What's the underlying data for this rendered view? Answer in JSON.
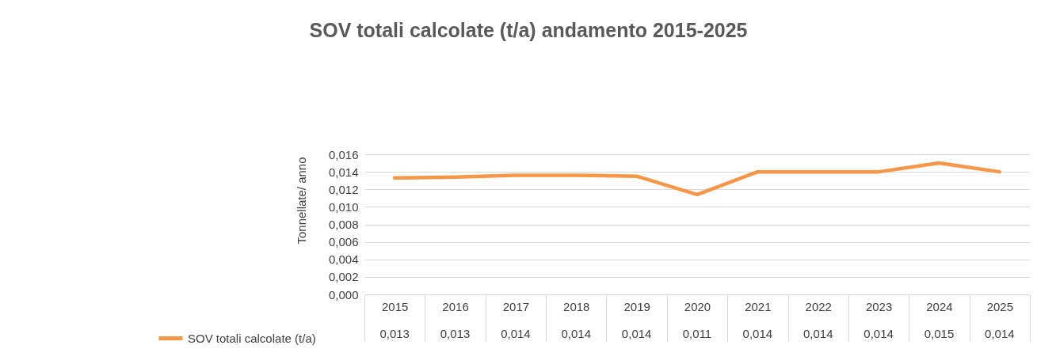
{
  "chart_data": {
    "type": "line",
    "title": "SOV totali calcolate (t/a) andamento 2015-2025",
    "ylabel": "Tonnellate/ anno",
    "categories": [
      "2015",
      "2016",
      "2017",
      "2018",
      "2019",
      "2020",
      "2021",
      "2022",
      "2023",
      "2024",
      "2025"
    ],
    "series": [
      {
        "name": "SOV totali calcolate (t/a)",
        "color": "#f79646",
        "values": [
          0.0133,
          0.0134,
          0.0136,
          0.0136,
          0.0135,
          0.0114,
          0.014,
          0.014,
          0.014,
          0.015,
          0.014
        ],
        "value_labels": [
          "0,013",
          "0,013",
          "0,014",
          "0,014",
          "0,014",
          "0,011",
          "0,014",
          "0,014",
          "0,014",
          "0,015",
          "0,014"
        ]
      }
    ],
    "ylim": [
      0,
      0.016
    ],
    "yticks": [
      {
        "value": 0,
        "label": "0,000"
      },
      {
        "value": 0.002,
        "label": "0,002"
      },
      {
        "value": 0.004,
        "label": "0,004"
      },
      {
        "value": 0.006,
        "label": "0,006"
      },
      {
        "value": 0.008,
        "label": "0,008"
      },
      {
        "value": 0.01,
        "label": "0,010"
      },
      {
        "value": 0.012,
        "label": "0,012"
      },
      {
        "value": 0.014,
        "label": "0,014"
      },
      {
        "value": 0.016,
        "label": "0,016"
      }
    ],
    "grid": "y",
    "legend": "bottom left",
    "marker": "none",
    "line_style": "solid"
  }
}
